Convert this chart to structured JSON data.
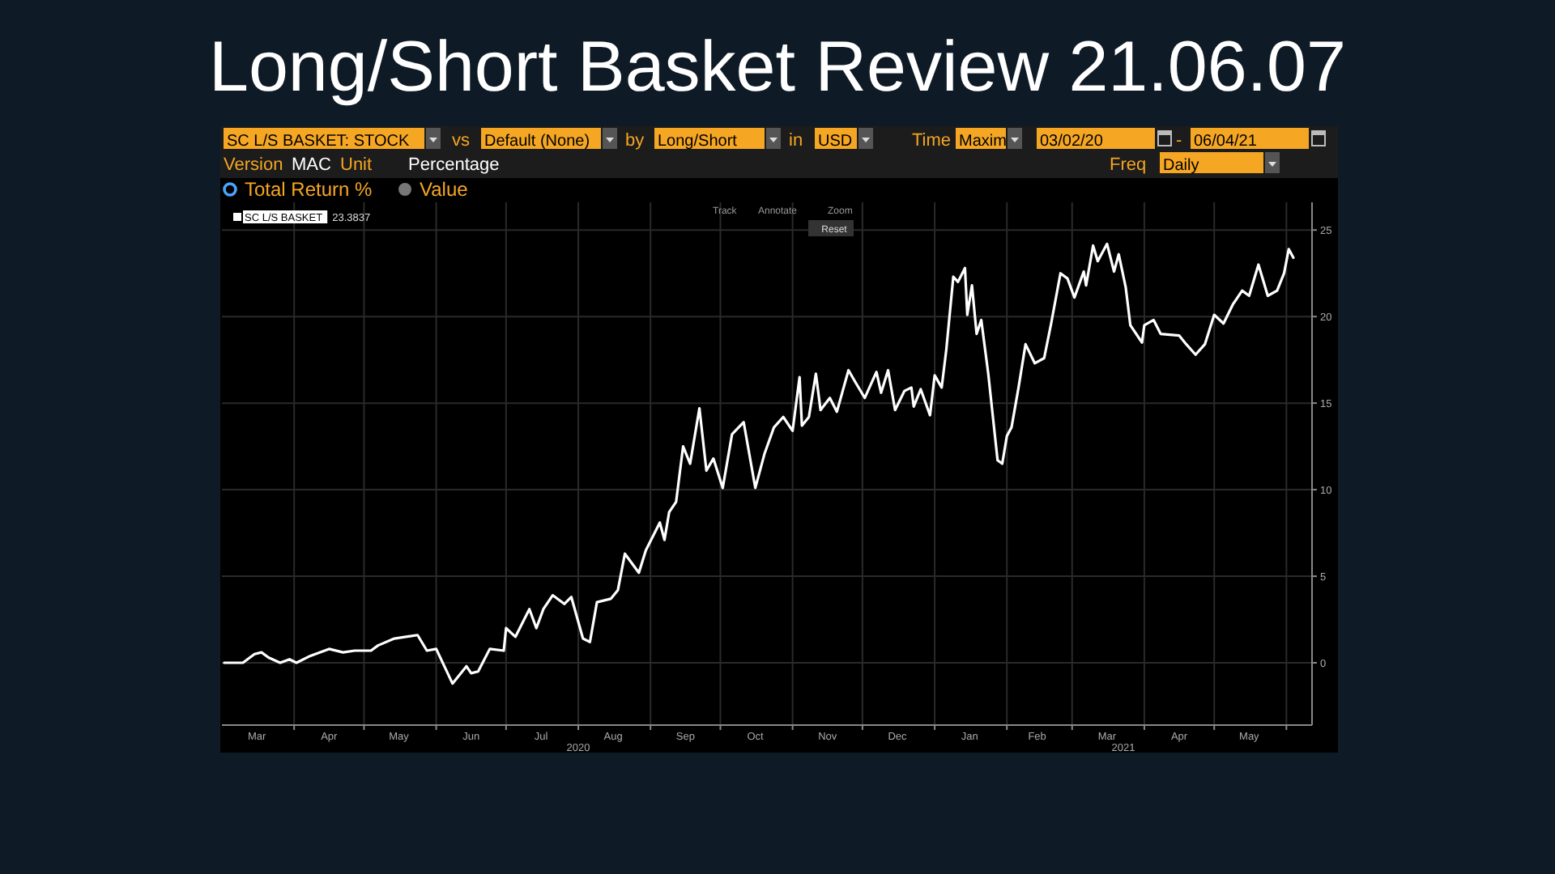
{
  "chart_data": {
    "type": "line",
    "title": "Long/Short Basket Review 21.06.07",
    "x": [
      "2020-03-02",
      "2020-03-10",
      "2020-03-15",
      "2020-03-18",
      "2020-03-21",
      "2020-03-26",
      "2020-03-30",
      "2020-04-02",
      "2020-04-08",
      "2020-04-16",
      "2020-04-22",
      "2020-04-27",
      "2020-05-04",
      "2020-05-07",
      "2020-05-14",
      "2020-05-19",
      "2020-05-24",
      "2020-05-28",
      "2020-06-01",
      "2020-06-08",
      "2020-06-14",
      "2020-06-16",
      "2020-06-19",
      "2020-06-24",
      "2020-06-30",
      "2020-07-01",
      "2020-07-05",
      "2020-07-11",
      "2020-07-14",
      "2020-07-17",
      "2020-07-21",
      "2020-07-26",
      "2020-07-29",
      "2020-08-03",
      "2020-08-06",
      "2020-08-09",
      "2020-08-15",
      "2020-08-18",
      "2020-08-21",
      "2020-08-27",
      "2020-08-30",
      "2020-09-05",
      "2020-09-07",
      "2020-09-09",
      "2020-09-12",
      "2020-09-15",
      "2020-09-18",
      "2020-09-22",
      "2020-09-25",
      "2020-09-28",
      "2020-10-02",
      "2020-10-06",
      "2020-10-11",
      "2020-10-16",
      "2020-10-20",
      "2020-10-24",
      "2020-10-28",
      "2020-11-01",
      "2020-11-04",
      "2020-11-05",
      "2020-11-08",
      "2020-11-11",
      "2020-11-13",
      "2020-11-17",
      "2020-11-20",
      "2020-11-25",
      "2020-11-28",
      "2020-12-02",
      "2020-12-07",
      "2020-12-09",
      "2020-12-12",
      "2020-12-15",
      "2020-12-19",
      "2020-12-22",
      "2020-12-23",
      "2020-12-26",
      "2020-12-30",
      "2021-01-01",
      "2021-01-04",
      "2021-01-06",
      "2021-01-09",
      "2021-01-11",
      "2021-01-14",
      "2021-01-15",
      "2021-01-17",
      "2021-01-19",
      "2021-01-21",
      "2021-01-24",
      "2021-01-28",
      "2021-01-30",
      "2021-02-01",
      "2021-02-03",
      "2021-02-06",
      "2021-02-09",
      "2021-02-13",
      "2021-02-17",
      "2021-02-20",
      "2021-02-24",
      "2021-02-27",
      "2021-03-02",
      "2021-03-06",
      "2021-03-07",
      "2021-03-10",
      "2021-03-12",
      "2021-03-16",
      "2021-03-19",
      "2021-03-21",
      "2021-03-24",
      "2021-03-26",
      "2021-03-31",
      "2021-04-01",
      "2021-04-05",
      "2021-04-08",
      "2021-04-16",
      "2021-04-19",
      "2021-04-23",
      "2021-04-27",
      "2021-05-01",
      "2021-05-05",
      "2021-05-09",
      "2021-05-13",
      "2021-05-16",
      "2021-05-20",
      "2021-05-24",
      "2021-05-28",
      "2021-05-31",
      "2021-06-02",
      "2021-06-04"
    ],
    "series": [
      {
        "name": "SC L/S BASKET",
        "color": "#ffffff",
        "values": [
          0,
          0,
          0.5,
          0.6,
          0.3,
          0,
          0.2,
          0,
          0.4,
          0.8,
          0.6,
          0.7,
          0.7,
          1.0,
          1.4,
          1.5,
          1.6,
          0.7,
          0.8,
          -1.2,
          -0.2,
          -0.6,
          -0.5,
          0.8,
          0.7,
          2.0,
          1.5,
          3.1,
          2.0,
          3.1,
          3.9,
          3.4,
          3.8,
          1.4,
          1.2,
          3.5,
          3.7,
          4.2,
          6.3,
          5.2,
          6.5,
          8.1,
          7.1,
          8.7,
          9.3,
          12.5,
          11.5,
          14.7,
          11.1,
          11.8,
          10.1,
          13.2,
          13.9,
          10.1,
          12.1,
          13.6,
          14.2,
          13.4,
          16.5,
          13.7,
          14.2,
          16.7,
          14.6,
          15.3,
          14.5,
          16.9,
          16.2,
          15.3,
          16.8,
          15.6,
          16.9,
          14.6,
          15.7,
          15.9,
          14.8,
          15.8,
          14.3,
          16.6,
          15.9,
          18.1,
          22.3,
          22.0,
          22.8,
          20.1,
          21.8,
          19.0,
          19.8,
          16.7,
          11.7,
          11.5,
          13.1,
          13.6,
          15.9,
          18.4,
          17.3,
          17.6,
          19.6,
          22.5,
          22.2,
          21.1,
          22.6,
          21.8,
          24.1,
          23.2,
          24.2,
          22.6,
          23.6,
          21.7,
          19.5,
          18.5,
          19.5,
          19.8,
          19.0,
          18.9,
          18.4,
          17.8,
          18.4,
          20.1,
          19.6,
          20.7,
          21.5,
          21.2,
          23.0,
          21.2,
          21.5,
          22.5,
          23.9,
          23.4
        ]
      }
    ],
    "xlim": [
      "2020-03-01",
      "2021-06-12"
    ],
    "xticks": [
      {
        "value": "2020-03-16",
        "label": "Mar"
      },
      {
        "value": "2020-04-01",
        "label": null
      },
      {
        "value": "2020-04-16",
        "label": "Apr"
      },
      {
        "value": "2020-05-01",
        "label": null
      },
      {
        "value": "2020-05-16",
        "label": "May"
      },
      {
        "value": "2020-06-01",
        "label": null
      },
      {
        "value": "2020-06-16",
        "label": "Jun"
      },
      {
        "value": "2020-07-01",
        "label": null
      },
      {
        "value": "2020-07-16",
        "label": "Jul"
      },
      {
        "value": "2020-08-01",
        "label": null
      },
      {
        "value": "2020-08-16",
        "label": "Aug"
      },
      {
        "value": "2020-09-01",
        "label": null
      },
      {
        "value": "2020-09-16",
        "label": "Sep"
      },
      {
        "value": "2020-10-01",
        "label": null
      },
      {
        "value": "2020-10-16",
        "label": "Oct"
      },
      {
        "value": "2020-11-01",
        "label": null
      },
      {
        "value": "2020-11-16",
        "label": "Nov"
      },
      {
        "value": "2020-12-01",
        "label": null
      },
      {
        "value": "2020-12-16",
        "label": "Dec"
      },
      {
        "value": "2021-01-01",
        "label": null
      },
      {
        "value": "2021-01-16",
        "label": "Jan"
      },
      {
        "value": "2021-02-01",
        "label": null
      },
      {
        "value": "2021-02-14",
        "label": "Feb"
      },
      {
        "value": "2021-03-01",
        "label": null
      },
      {
        "value": "2021-03-16",
        "label": "Mar"
      },
      {
        "value": "2021-04-01",
        "label": null
      },
      {
        "value": "2021-04-16",
        "label": "Apr"
      },
      {
        "value": "2021-05-01",
        "label": null
      },
      {
        "value": "2021-05-16",
        "label": "May"
      },
      {
        "value": "2021-06-01",
        "label": null
      }
    ],
    "ylim": [
      -3.6,
      26.6
    ],
    "yticks": [
      0,
      5,
      10,
      15,
      20,
      25
    ],
    "grid": true,
    "legend": "top left",
    "annotations": [
      "SC L/S BASKET: STOCK",
      "vs",
      "Default (None)",
      "by",
      "Long/Short",
      "in",
      "USD",
      "Time",
      "Maxim",
      "03/02/20",
      "-",
      "06/04/21",
      "Version",
      "MAC",
      "Unit",
      "Percentage",
      "Freq",
      "Daily",
      "Total Return %",
      "Value",
      "Track",
      "Annotate",
      "Zoom",
      "Reset",
      "23.3837",
      "2020",
      "2021"
    ]
  }
}
